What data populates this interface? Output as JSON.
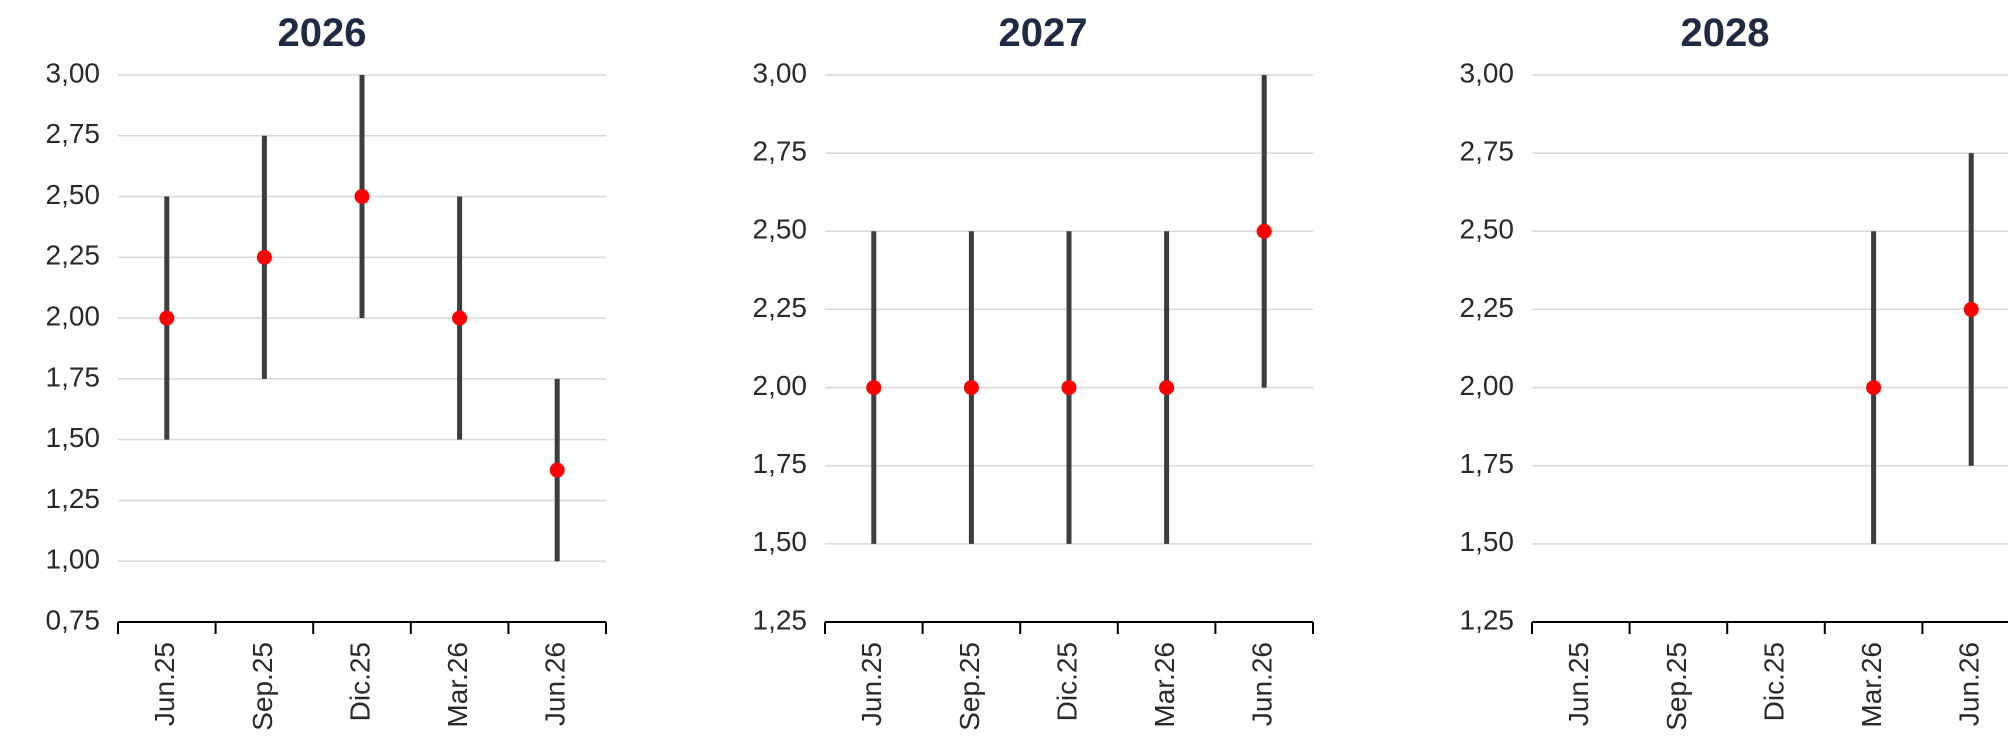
{
  "chart_data": [
    {
      "type": "range",
      "title": "2026",
      "categories": [
        "Jun.25",
        "Sep.25",
        "Dic.25",
        "Mar.26",
        "Jun.26"
      ],
      "ylim": [
        0.75,
        3.0
      ],
      "yticks": [
        "0,75",
        "1,00",
        "1,25",
        "1,50",
        "1,75",
        "2,00",
        "2,25",
        "2,50",
        "2,75",
        "3,00"
      ],
      "low": [
        1.5,
        1.75,
        2.0,
        1.5,
        1.0
      ],
      "high": [
        2.5,
        2.75,
        3.0,
        2.5,
        1.75
      ],
      "point": [
        2.0,
        2.25,
        2.5,
        2.0,
        1.375
      ],
      "grid": true
    },
    {
      "type": "range",
      "title": "2027",
      "categories": [
        "Jun.25",
        "Sep.25",
        "Dic.25",
        "Mar.26",
        "Jun.26"
      ],
      "ylim": [
        1.25,
        3.0
      ],
      "yticks": [
        "1,25",
        "1,50",
        "1,75",
        "2,00",
        "2,25",
        "2,50",
        "2,75",
        "3,00"
      ],
      "low": [
        1.5,
        1.5,
        1.5,
        1.5,
        2.0
      ],
      "high": [
        2.5,
        2.5,
        2.5,
        2.5,
        3.0
      ],
      "point": [
        2.0,
        2.0,
        2.0,
        2.0,
        2.5
      ],
      "grid": true
    },
    {
      "type": "range",
      "title": "2028",
      "categories": [
        "Jun.25",
        "Sep.25",
        "Dic.25",
        "Mar.26",
        "Jun.26"
      ],
      "ylim": [
        1.25,
        3.0
      ],
      "yticks": [
        "1,25",
        "1,50",
        "1,75",
        "2,00",
        "2,25",
        "2,50",
        "2,75",
        "3,00"
      ],
      "low": [
        null,
        null,
        null,
        1.5,
        1.75
      ],
      "high": [
        null,
        null,
        null,
        2.5,
        2.75
      ],
      "point": [
        null,
        null,
        null,
        2.0,
        2.25
      ],
      "grid": true
    }
  ],
  "colors": {
    "range_line": "#3d3d3d",
    "point": "#ff0000",
    "grid": "#d9d9d9",
    "axis": "#000000",
    "title": "#1f2a44"
  }
}
